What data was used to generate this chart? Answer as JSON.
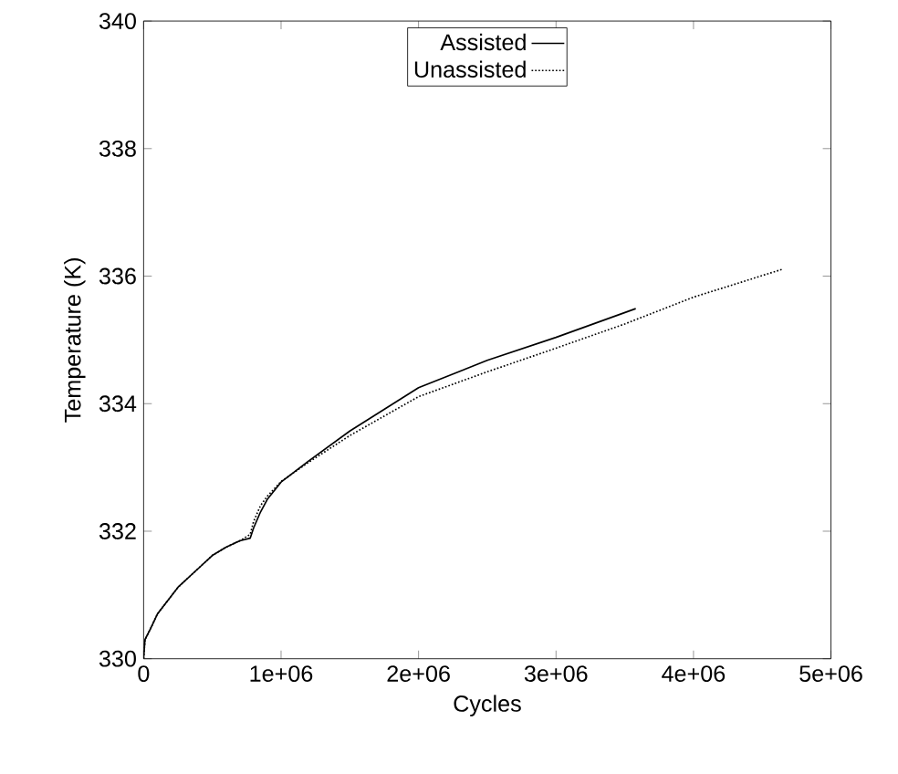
{
  "chart_data": {
    "type": "line",
    "xlabel": "Cycles",
    "ylabel": "Temperature (K)",
    "xlim": [
      0,
      5000000
    ],
    "ylim": [
      330,
      340
    ],
    "xticks": [
      0,
      {
        "value": 1000000,
        "label": "1e+06"
      },
      {
        "value": 2000000,
        "label": "2e+06"
      },
      {
        "value": 3000000,
        "label": "3e+06"
      },
      {
        "value": 4000000,
        "label": "4e+06"
      },
      {
        "value": 5000000,
        "label": "5e+06"
      }
    ],
    "yticks": [
      330,
      332,
      334,
      336,
      338,
      340
    ],
    "legend": "top",
    "grid": false,
    "series": [
      {
        "name": "Assisted",
        "color": "#000000",
        "line_style": "solid",
        "x": [
          0,
          10000,
          50000,
          100000,
          250000,
          400000,
          500000,
          600000,
          700000,
          775000,
          800000,
          850000,
          900000,
          1000000,
          1200000,
          1500000,
          2000000,
          2500000,
          3000000,
          3580000
        ],
        "values": [
          330.0,
          330.3,
          330.47,
          330.7,
          331.12,
          331.42,
          331.62,
          331.75,
          331.85,
          331.89,
          332.05,
          332.3,
          332.5,
          332.77,
          333.1,
          333.57,
          334.25,
          334.68,
          335.04,
          335.49
        ]
      },
      {
        "name": "Unassisted",
        "color": "#000000",
        "line_style": "dotted",
        "x": [
          0,
          10000,
          50000,
          100000,
          250000,
          400000,
          500000,
          600000,
          700000,
          775000,
          800000,
          850000,
          900000,
          1000000,
          1200000,
          1500000,
          2000000,
          2500000,
          3000000,
          3500000,
          4000000,
          4650000
        ],
        "values": [
          330.0,
          330.3,
          330.47,
          330.7,
          331.12,
          331.42,
          331.62,
          331.75,
          331.85,
          331.95,
          332.15,
          332.4,
          332.55,
          332.78,
          333.08,
          333.5,
          334.11,
          334.5,
          334.87,
          335.25,
          335.67,
          336.11
        ]
      }
    ]
  }
}
